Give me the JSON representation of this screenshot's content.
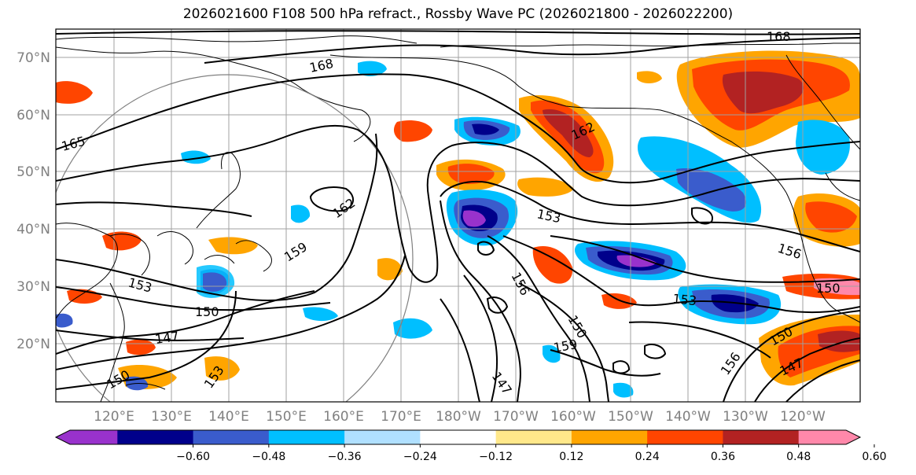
{
  "title": "2026021600 F108 500 hPa refract., Rossby Wave PC (2026021800 - 2026022200)",
  "lat_ticks": [
    "70°N",
    "60°N",
    "50°N",
    "40°N",
    "30°N",
    "20°N"
  ],
  "lon_ticks": [
    "120°E",
    "130°E",
    "140°E",
    "150°E",
    "160°E",
    "170°E",
    "180°W",
    "170°W",
    "160°W",
    "150°W",
    "140°W",
    "130°W",
    "120°W"
  ],
  "colorbar": {
    "colors": [
      "#9932cc",
      "#00008b",
      "#3a5ccc",
      "#00bfff",
      "#b0e0ff",
      "#ffffff",
      "#ffe88a",
      "#ffa500",
      "#ff4500",
      "#b22222",
      "#ff88aa"
    ],
    "ticks": [
      "−0.60",
      "−0.48",
      "−0.36",
      "−0.24",
      "−0.12",
      "0.12",
      "0.24",
      "0.36",
      "0.48",
      "0.60"
    ]
  },
  "contour_labels": [
    "168",
    "168",
    "165",
    "162",
    "159",
    "153",
    "153",
    "156",
    "150",
    "153",
    "150",
    "147",
    "153",
    "156",
    "150",
    "159",
    "147",
    "156",
    "150",
    "147",
    "150",
    "162"
  ]
}
